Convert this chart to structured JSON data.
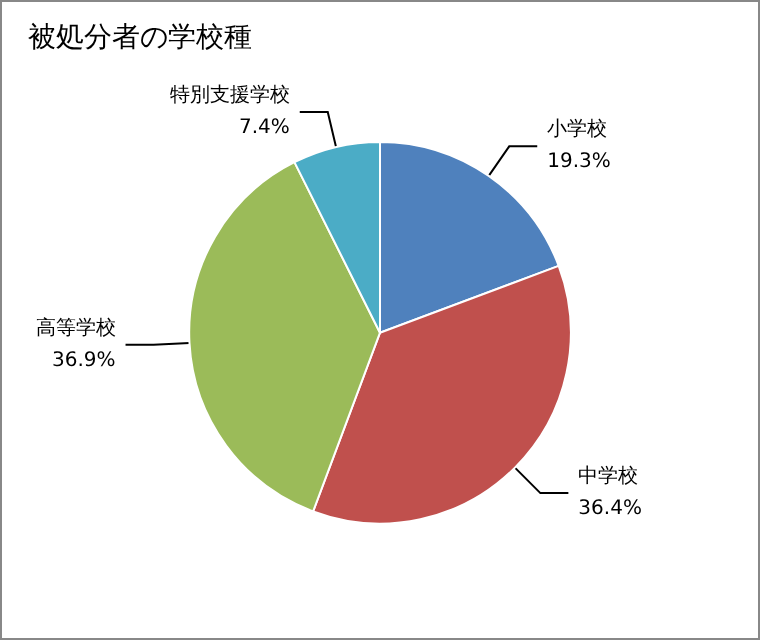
{
  "chart_data": {
    "type": "pie",
    "title": "被処分者の学校種",
    "categories": [
      "小学校",
      "中学校",
      "高等学校",
      "特別支援学校"
    ],
    "values": [
      19.3,
      36.4,
      36.9,
      7.4
    ],
    "colors": [
      "#4f81bd",
      "#c0504d",
      "#9bbb59",
      "#4bacc6"
    ],
    "value_labels": [
      "19.3%",
      "36.4%",
      "36.9%",
      "7.4%"
    ],
    "legend": false
  }
}
